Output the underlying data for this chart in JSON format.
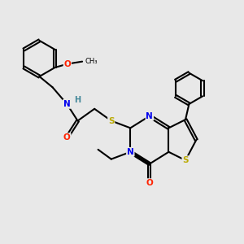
{
  "bg_color": "#e8e8e8",
  "bond_color": "#000000",
  "atom_colors": {
    "N": "#0000ee",
    "O": "#ff2200",
    "S": "#bbaa00",
    "H": "#448899",
    "C": "#000000"
  },
  "line_width": 1.5,
  "dbo": 0.055
}
